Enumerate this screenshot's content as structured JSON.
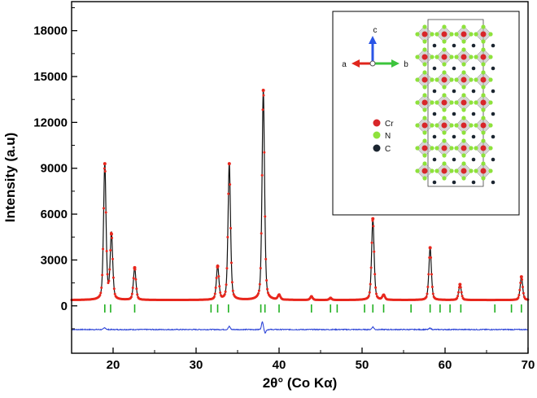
{
  "chart_data": {
    "type": "line",
    "title": "",
    "xlabel": "2θ° (Co Kα)",
    "ylabel": "Intensity (a.u)",
    "xlim": [
      15,
      70
    ],
    "ylim": [
      -3100,
      19900
    ],
    "x_ticks": [
      20,
      30,
      40,
      50,
      60,
      70
    ],
    "y_ticks": [
      0,
      3000,
      6000,
      9000,
      12000,
      15000,
      18000
    ],
    "grid": false,
    "background": 380,
    "peaks": [
      {
        "x": 19.0,
        "y": 9300
      },
      {
        "x": 19.8,
        "y": 4700
      },
      {
        "x": 22.6,
        "y": 2500
      },
      {
        "x": 32.6,
        "y": 2600
      },
      {
        "x": 34.0,
        "y": 9300
      },
      {
        "x": 38.1,
        "y": 14100
      },
      {
        "x": 40.0,
        "y": 700
      },
      {
        "x": 43.9,
        "y": 600
      },
      {
        "x": 46.2,
        "y": 500
      },
      {
        "x": 51.3,
        "y": 5700
      },
      {
        "x": 52.6,
        "y": 700
      },
      {
        "x": 58.2,
        "y": 3800
      },
      {
        "x": 61.8,
        "y": 1400
      },
      {
        "x": 69.2,
        "y": 1900
      }
    ],
    "bragg_positions": [
      19.0,
      19.7,
      22.6,
      31.8,
      32.6,
      33.9,
      37.8,
      38.3,
      40.0,
      43.9,
      46.2,
      47.0,
      50.3,
      51.3,
      52.6,
      55.9,
      58.2,
      59.4,
      60.6,
      61.9,
      66.0,
      68.0,
      69.2
    ],
    "bragg_y": -120,
    "difference_offset": -1550,
    "difference_spikes": [
      {
        "x": 19.0,
        "y": 120
      },
      {
        "x": 34.0,
        "y": 200
      },
      {
        "x": 38.0,
        "y": 500
      },
      {
        "x": 38.3,
        "y": -220
      },
      {
        "x": 51.3,
        "y": 170
      },
      {
        "x": 58.2,
        "y": 90
      }
    ],
    "colors": {
      "observed": "#e8261c",
      "calculated": "#111111",
      "difference": "#2f46d8",
      "bragg": "#20b020"
    }
  },
  "inset": {
    "axis_labels": {
      "a": "a",
      "b": "b",
      "c": "c"
    },
    "legend": [
      {
        "label": "Cr",
        "color": "#d8262a"
      },
      {
        "label": "N",
        "color": "#8ee23c"
      },
      {
        "label": "C",
        "color": "#1b2530"
      }
    ]
  }
}
